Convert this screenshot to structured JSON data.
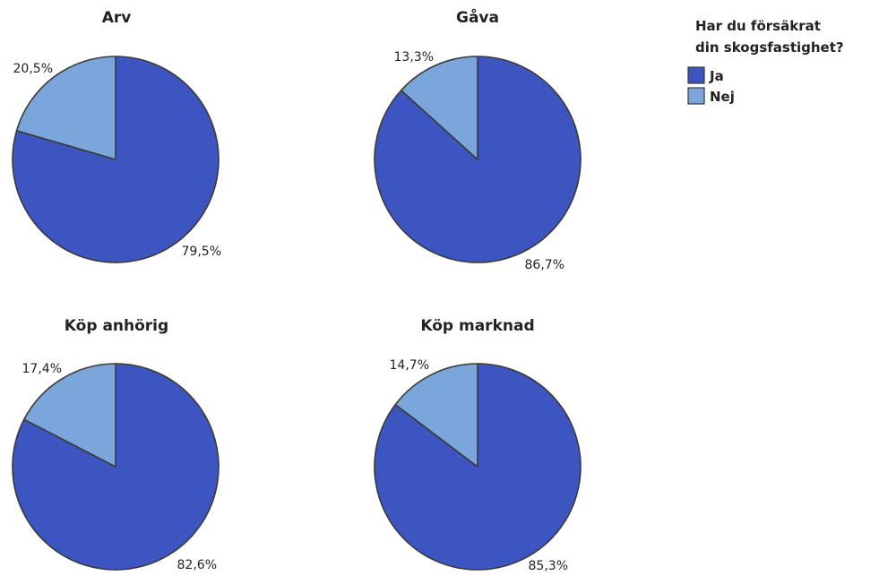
{
  "chart_data": [
    {
      "type": "pie",
      "title": "Arv",
      "slices": [
        {
          "name": "Ja",
          "value": 79.5,
          "label": "79,5%"
        },
        {
          "name": "Nej",
          "value": 20.5,
          "label": "20,5%"
        }
      ]
    },
    {
      "type": "pie",
      "title": "Gåva",
      "slices": [
        {
          "name": "Ja",
          "value": 86.7,
          "label": "86,7%"
        },
        {
          "name": "Nej",
          "value": 13.3,
          "label": "13,3%"
        }
      ]
    },
    {
      "type": "pie",
      "title": "Köp anhörig",
      "slices": [
        {
          "name": "Ja",
          "value": 82.6,
          "label": "82,6%"
        },
        {
          "name": "Nej",
          "value": 17.4,
          "label": "17,4%"
        }
      ]
    },
    {
      "type": "pie",
      "title": "Köp marknad",
      "slices": [
        {
          "name": "Ja",
          "value": 85.3,
          "label": "85,3%"
        },
        {
          "name": "Nej",
          "value": 14.7,
          "label": "14,7%"
        }
      ]
    }
  ],
  "legend": {
    "title_line1": "Har du försäkrat",
    "title_line2": "din skogsfastighet?",
    "placement": "top-right",
    "items": [
      {
        "name": "Ja",
        "color": "#3d55c1"
      },
      {
        "name": "Nej",
        "color": "#7ba6db"
      }
    ]
  },
  "colors": {
    "Ja": "#3d55c1",
    "Nej": "#7ba6db"
  }
}
